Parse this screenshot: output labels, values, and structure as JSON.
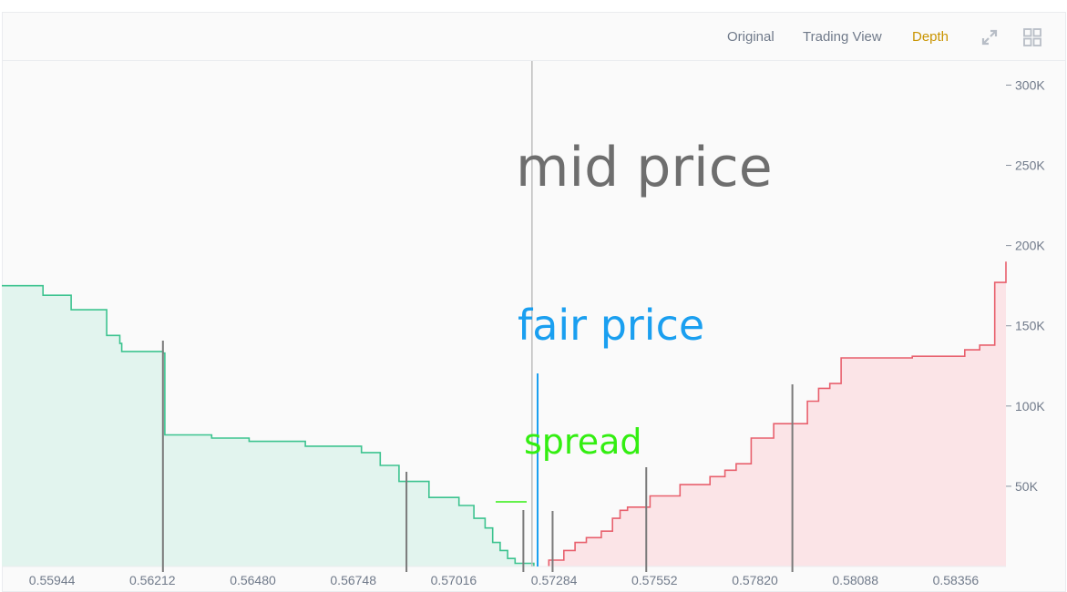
{
  "toolbar": {
    "tabs": [
      {
        "label": "Original",
        "active": false
      },
      {
        "label": "Trading View",
        "active": false
      },
      {
        "label": "Depth",
        "active": true
      }
    ],
    "icons": [
      "expand-icon",
      "grid-layout-icon"
    ]
  },
  "colors": {
    "bid_line": "#3cc38f",
    "bid_fill": "#e2f4ee",
    "ask_line": "#e8606d",
    "ask_fill": "#fbe4e7",
    "mid_price": "#6e6e6e",
    "fair_price": "#1a9ff0",
    "spread": "#33ee11",
    "marker": "#7a7a7a",
    "axis_text": "#707a8a",
    "active_tab": "#c99400"
  },
  "chart_data": {
    "type": "area",
    "xlim": [
      0.5581,
      0.5849
    ],
    "ylim": [
      0,
      315000
    ],
    "x_ticks": [
      "0.55944",
      "0.56212",
      "0.56480",
      "0.56748",
      "0.57016",
      "0.57284",
      "0.57552",
      "0.57820",
      "0.58088",
      "0.58356"
    ],
    "x_tick_values": [
      0.55944,
      0.56212,
      0.5648,
      0.56748,
      0.57016,
      0.57284,
      0.57552,
      0.5782,
      0.58088,
      0.58356
    ],
    "y_ticks": [
      "300K",
      "250K",
      "200K",
      "150K",
      "100K",
      "50K"
    ],
    "y_tick_values": [
      300000,
      250000,
      200000,
      150000,
      100000,
      50000
    ],
    "series": [
      {
        "side": "bid",
        "points": [
          [
            0.5581,
            175000
          ],
          [
            0.5592,
            175000
          ],
          [
            0.5592,
            169000
          ],
          [
            0.55995,
            169000
          ],
          [
            0.55995,
            160000
          ],
          [
            0.5609,
            160000
          ],
          [
            0.5609,
            144000
          ],
          [
            0.56125,
            144000
          ],
          [
            0.56125,
            139000
          ],
          [
            0.5613,
            139000
          ],
          [
            0.5613,
            134000
          ],
          [
            0.5624,
            134000
          ],
          [
            0.5624,
            133000
          ],
          [
            0.56245,
            133000
          ],
          [
            0.56245,
            82000
          ],
          [
            0.5637,
            82000
          ],
          [
            0.5637,
            80000
          ],
          [
            0.5647,
            80000
          ],
          [
            0.5647,
            78000
          ],
          [
            0.5662,
            78000
          ],
          [
            0.5662,
            75000
          ],
          [
            0.5677,
            75000
          ],
          [
            0.5677,
            71000
          ],
          [
            0.5682,
            71000
          ],
          [
            0.5682,
            63000
          ],
          [
            0.5687,
            63000
          ],
          [
            0.5687,
            53000
          ],
          [
            0.5695,
            53000
          ],
          [
            0.5695,
            43000
          ],
          [
            0.5703,
            43000
          ],
          [
            0.5703,
            38000
          ],
          [
            0.5707,
            38000
          ],
          [
            0.5707,
            30000
          ],
          [
            0.571,
            30000
          ],
          [
            0.571,
            24000
          ],
          [
            0.5712,
            24000
          ],
          [
            0.5712,
            15000
          ],
          [
            0.5714,
            15000
          ],
          [
            0.5714,
            10000
          ],
          [
            0.5716,
            10000
          ],
          [
            0.5716,
            5000
          ],
          [
            0.5718,
            5000
          ],
          [
            0.5718,
            2000
          ],
          [
            0.5723,
            2000
          ],
          [
            0.5723,
            0
          ]
        ]
      },
      {
        "side": "ask",
        "points": [
          [
            0.5727,
            0
          ],
          [
            0.5727,
            4000
          ],
          [
            0.5731,
            4000
          ],
          [
            0.5731,
            10000
          ],
          [
            0.5734,
            10000
          ],
          [
            0.5734,
            15000
          ],
          [
            0.5737,
            15000
          ],
          [
            0.5737,
            18000
          ],
          [
            0.5741,
            18000
          ],
          [
            0.5741,
            22000
          ],
          [
            0.5744,
            22000
          ],
          [
            0.5744,
            30000
          ],
          [
            0.5746,
            30000
          ],
          [
            0.5746,
            35000
          ],
          [
            0.5748,
            35000
          ],
          [
            0.5748,
            37000
          ],
          [
            0.5754,
            37000
          ],
          [
            0.5754,
            44000
          ],
          [
            0.5762,
            44000
          ],
          [
            0.5762,
            51000
          ],
          [
            0.577,
            51000
          ],
          [
            0.577,
            56000
          ],
          [
            0.5774,
            56000
          ],
          [
            0.5774,
            60000
          ],
          [
            0.5777,
            60000
          ],
          [
            0.5777,
            64000
          ],
          [
            0.5781,
            64000
          ],
          [
            0.5781,
            80000
          ],
          [
            0.5787,
            80000
          ],
          [
            0.5787,
            89000
          ],
          [
            0.5796,
            89000
          ],
          [
            0.5796,
            103000
          ],
          [
            0.5799,
            103000
          ],
          [
            0.5799,
            111000
          ],
          [
            0.5802,
            111000
          ],
          [
            0.5802,
            114000
          ],
          [
            0.5805,
            114000
          ],
          [
            0.5805,
            130000
          ],
          [
            0.5824,
            130000
          ],
          [
            0.5824,
            131000
          ],
          [
            0.5838,
            131000
          ],
          [
            0.5838,
            135000
          ],
          [
            0.5842,
            135000
          ],
          [
            0.5842,
            138000
          ],
          [
            0.5846,
            138000
          ],
          [
            0.5846,
            177000
          ],
          [
            0.5852,
            177000
          ],
          [
            0.5852,
            181000
          ],
          [
            0.5854,
            181000
          ],
          [
            0.5854,
            187000
          ],
          [
            0.5856,
            187000
          ],
          [
            0.5856,
            190000
          ],
          [
            0.5849,
            190000
          ]
        ]
      }
    ],
    "markers": [
      0.5624,
      0.5689,
      0.57202,
      0.5728,
      0.5753,
      0.5792
    ],
    "mid_price": 0.57225,
    "fair_price": 0.5724,
    "annotations": {
      "mid": "mid price",
      "fair": "fair price",
      "spread": "spread"
    }
  }
}
